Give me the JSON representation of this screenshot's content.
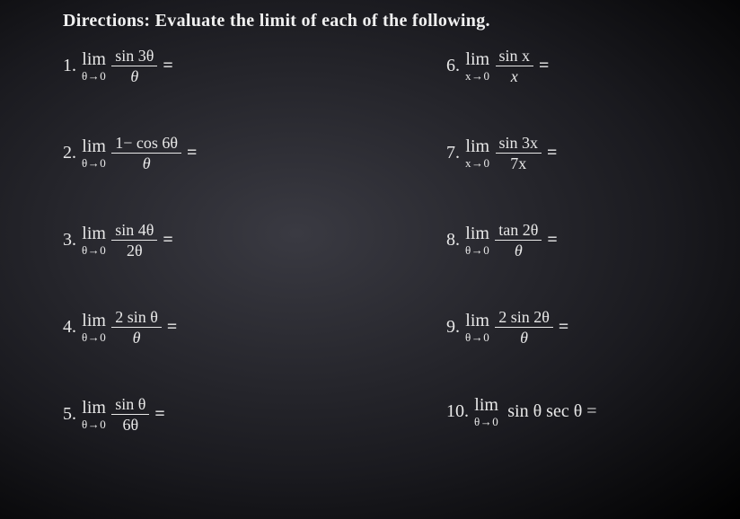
{
  "background": {
    "center_color": "#3a3a42",
    "edge_color": "#000000"
  },
  "text_color": "#e8e8e8",
  "directions": "Directions: Evaluate the limit of each of the following.",
  "lim_label": "lim",
  "equals": "=",
  "left": [
    {
      "n": "1.",
      "sub": "θ→0",
      "top": "sin 3θ",
      "bot": "θ"
    },
    {
      "n": "2.",
      "sub": "θ→0",
      "top": "1− cos 6θ",
      "bot": "θ"
    },
    {
      "n": "3.",
      "sub": "θ→0",
      "top": "sin 4θ",
      "bot": "2θ"
    },
    {
      "n": "4.",
      "sub": "θ→0",
      "top": "2 sin θ",
      "bot": "θ"
    },
    {
      "n": "5.",
      "sub": "θ→0",
      "top": "sin θ",
      "bot": "6θ"
    }
  ],
  "right": [
    {
      "n": "6.",
      "sub": "x→0",
      "top": "sin x",
      "bot": "x"
    },
    {
      "n": "7.",
      "sub": "x→0",
      "top": "sin 3x",
      "bot": "7x"
    },
    {
      "n": "8.",
      "sub": "θ→0",
      "top": "tan 2θ",
      "bot": "θ"
    },
    {
      "n": "9.",
      "sub": "θ→0",
      "top": "2 sin 2θ",
      "bot": "θ"
    }
  ],
  "right_inline": {
    "n": "10.",
    "sub": "θ→0",
    "expr": "sin θ sec θ ="
  }
}
